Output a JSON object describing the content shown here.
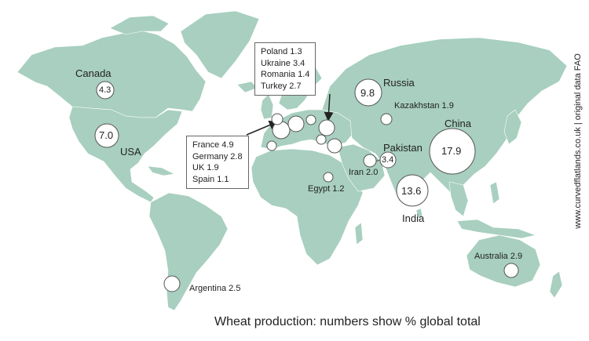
{
  "title": "Wheat production: numbers show % global total",
  "credit": "www.curvedflatlands.co.uk | original data FAO",
  "colors": {
    "land": "#a8cfbf",
    "bubble_fill": "#ffffff",
    "bubble_stroke": "#555555",
    "text": "#222222"
  },
  "countries": [
    {
      "name": "Canada",
      "value": "4.3"
    },
    {
      "name": "USA",
      "value": "7.0"
    },
    {
      "name": "Russia",
      "value": "9.8"
    },
    {
      "name": "China",
      "value": "17.9"
    },
    {
      "name": "India",
      "value": "13.6"
    },
    {
      "name": "Pakistan",
      "value": "3.4"
    },
    {
      "name": "Kazakhstan",
      "value": "1.9"
    },
    {
      "name": "Iran",
      "value": "2.0"
    },
    {
      "name": "Egypt",
      "value": "1.2"
    },
    {
      "name": "Australia",
      "value": "2.9"
    },
    {
      "name": "Argentina",
      "value": "2.5"
    }
  ],
  "europe_west_box": [
    "France 4.9",
    "Germany 2.8",
    "UK 1.9",
    "Spain 1.1"
  ],
  "europe_east_box": [
    "Poland 1.3",
    "Ukraine 3.4",
    "Romania 1.4",
    "Turkey 2.7"
  ]
}
